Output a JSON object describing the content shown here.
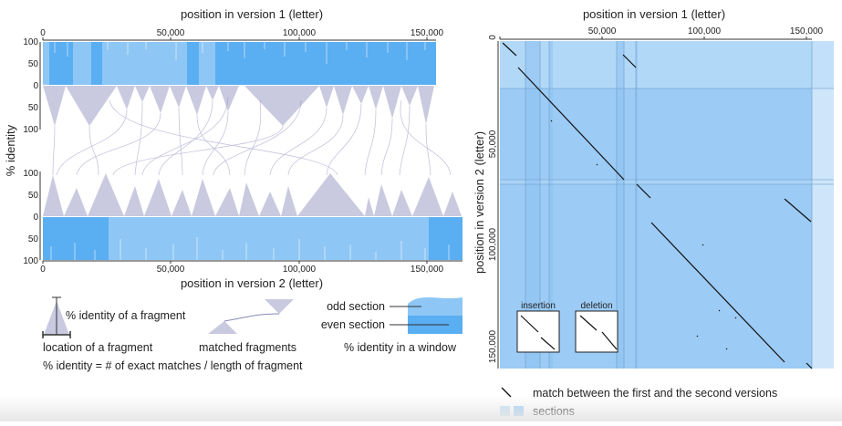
{
  "left_panel": {
    "top_axis_title": "position in version 1 (letter)",
    "bottom_axis_title": "position in version 2 (letter)",
    "y_axis_title": "% identity",
    "top_ticks": [
      "0",
      "50,000",
      "100,000",
      "150,000"
    ],
    "bottom_ticks": [
      "0",
      "50,000",
      "100,000",
      "150,000"
    ],
    "window_identity_ticks": [
      "100",
      "50",
      "0"
    ],
    "fragment_identity_ticks": [
      "50",
      "100"
    ],
    "lower_fragment_ticks": [
      "100",
      "50"
    ],
    "lower_window_ticks": [
      "0",
      "50",
      "100"
    ]
  },
  "legend": {
    "fragment_identity": "% identity of a fragment",
    "fragment_location": "location of a fragment",
    "matched_fragments": "matched fragments",
    "odd_section": "odd section",
    "even_section": "even section",
    "window_identity": "% identity in a window",
    "formula": "% identity = # of exact matches / length of fragment"
  },
  "right_panel": {
    "top_axis_title": "position in version 1 (letter)",
    "y_axis_title": "position in version 2 (letter)",
    "top_ticks": [
      "0",
      "50,000",
      "100,000",
      "150,000"
    ],
    "left_ticks": [
      "0",
      "50,000",
      "100,000",
      "150,000"
    ],
    "insertion_label": "insertion",
    "deletion_label": "deletion",
    "legend_match": "match between the first and the second versions",
    "legend_sections": "sections"
  },
  "colors": {
    "odd_section": "#8ec7f5",
    "even_section": "#5aaef2",
    "fragment": "#c9c9e0",
    "match_line": "#8888bb",
    "dotplot_bg": "#a9d3f7",
    "dotplot_band": "#92c6f4",
    "dotplot_light": "#cfe6fa"
  }
}
